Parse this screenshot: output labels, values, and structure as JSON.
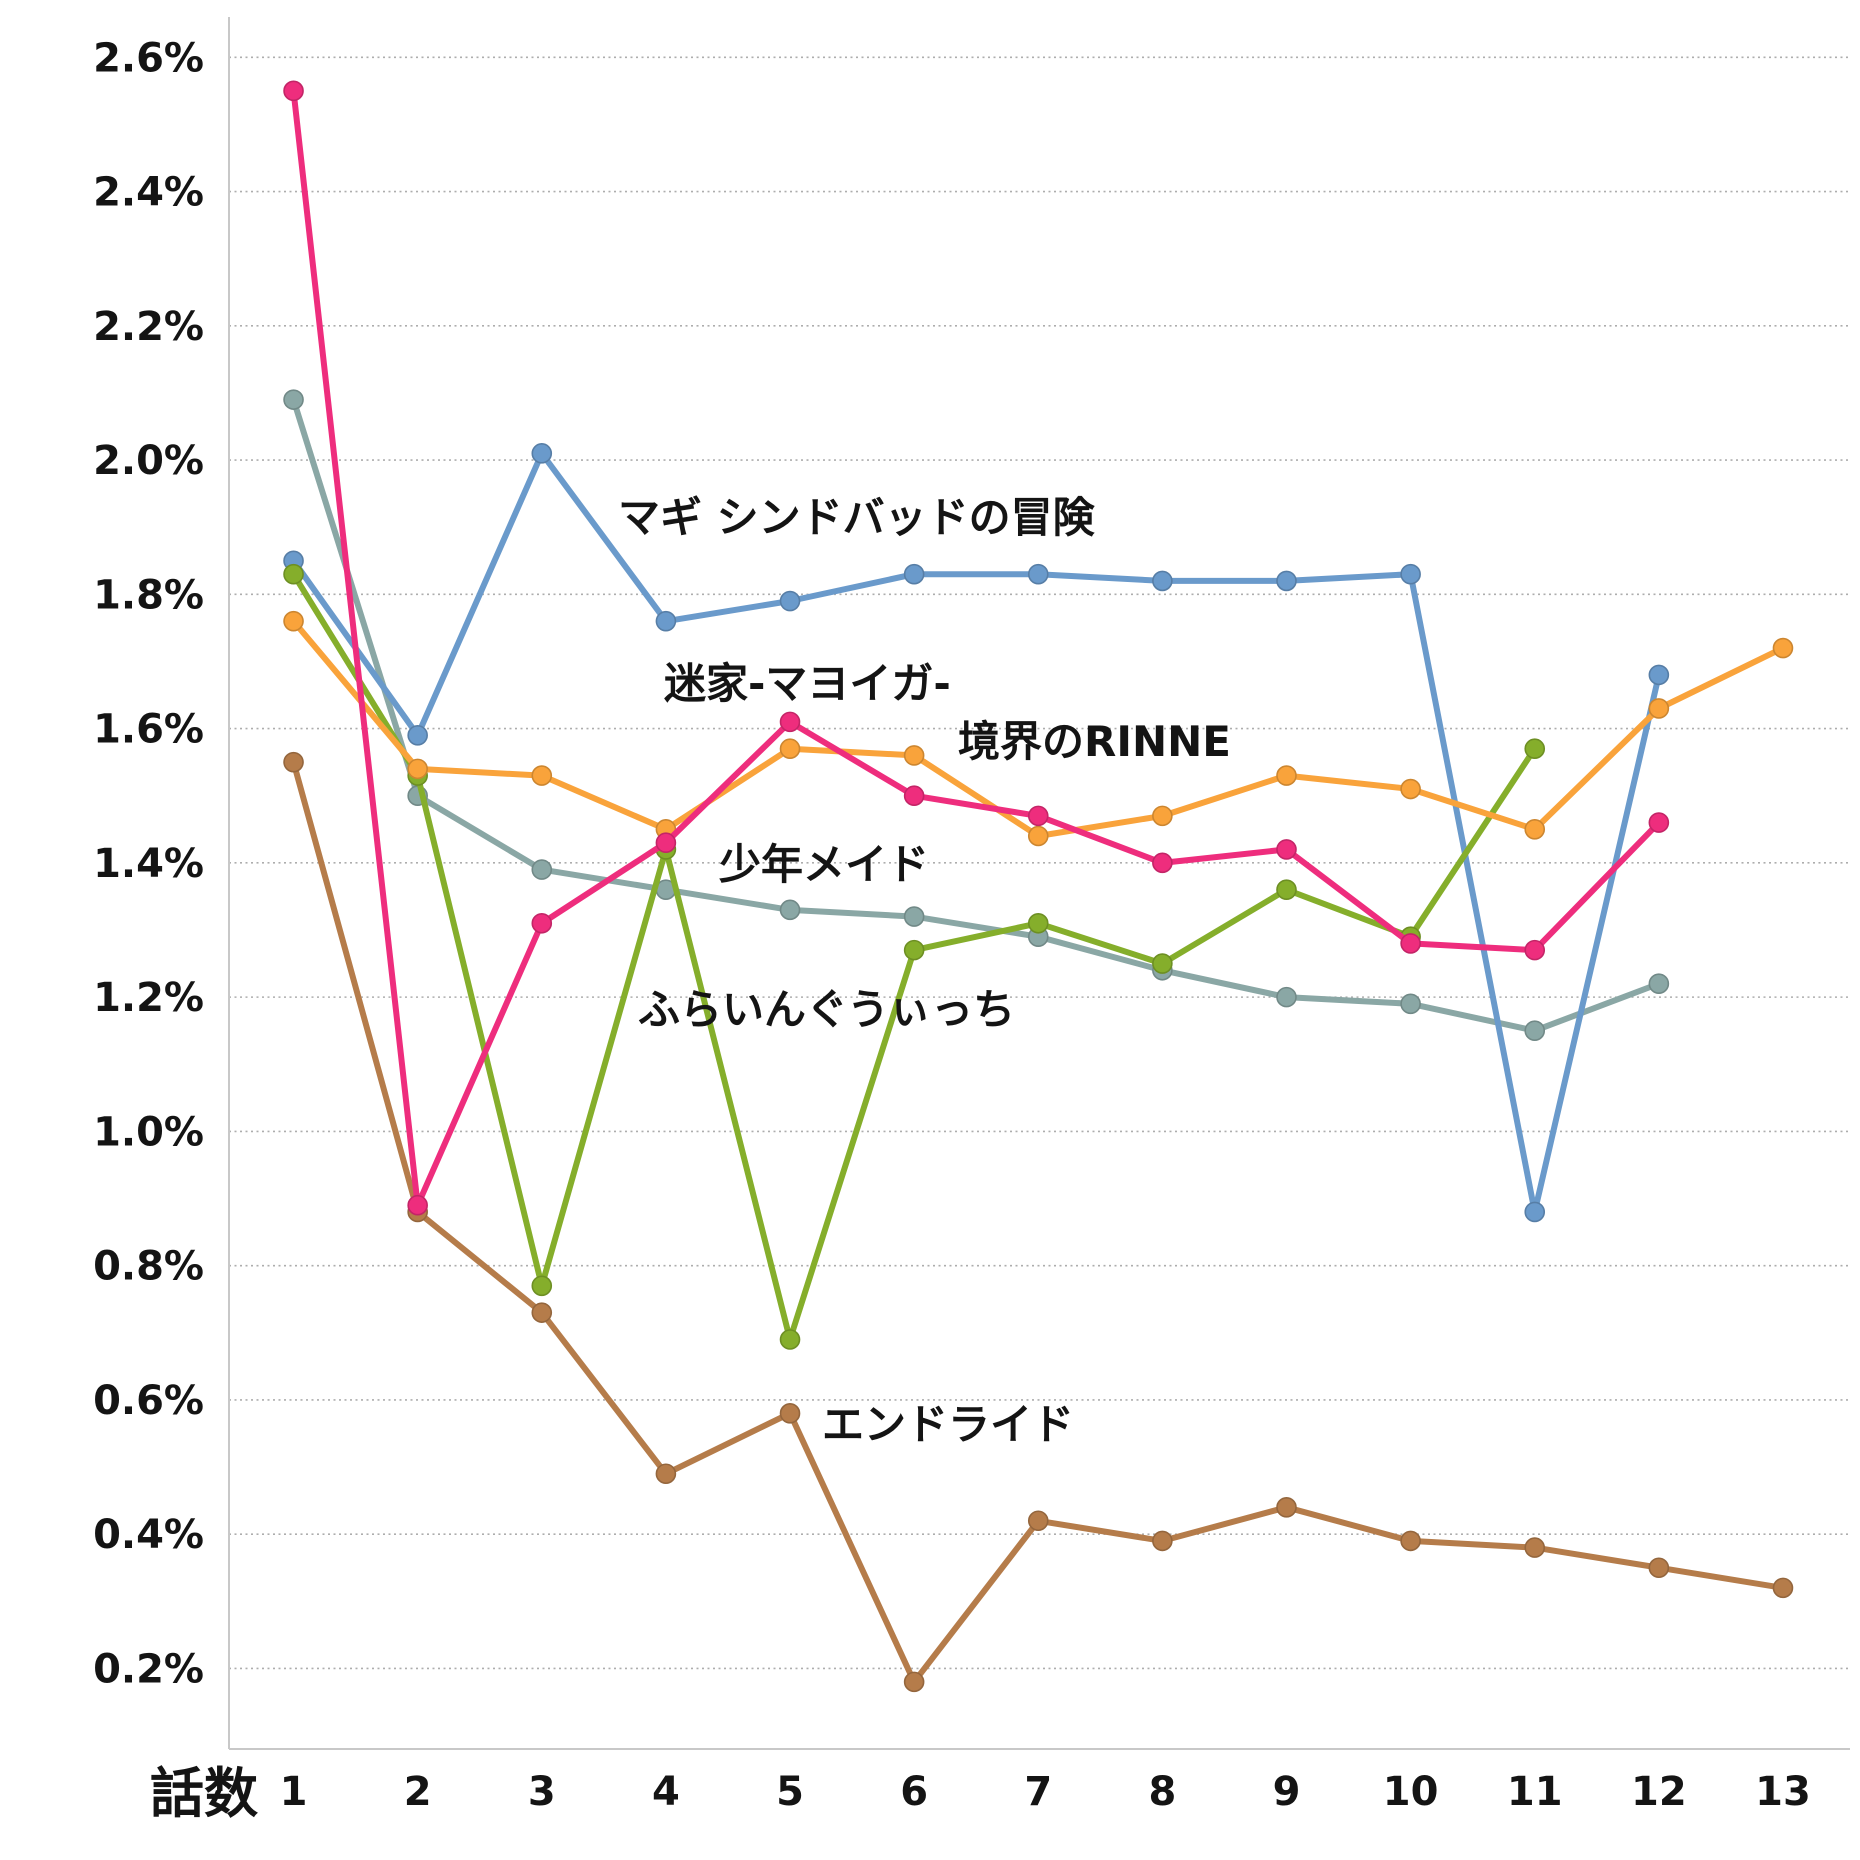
{
  "chart_data": {
    "type": "line",
    "title": "",
    "xlabel": "話数",
    "x": [
      1,
      2,
      3,
      4,
      5,
      6,
      7,
      8,
      9,
      10,
      11,
      12,
      13
    ],
    "x_tick_labels": [
      "1",
      "2",
      "3",
      "4",
      "5",
      "6",
      "7",
      "8",
      "9",
      "10",
      "11",
      "12",
      "13"
    ],
    "y_ticks": [
      0.2,
      0.4,
      0.6,
      0.8,
      1.0,
      1.2,
      1.4,
      1.6,
      1.8,
      2.0,
      2.2,
      2.4,
      2.6
    ],
    "y_tick_labels": [
      "0.2%",
      "0.4%",
      "0.6%",
      "0.8%",
      "1.0%",
      "1.2%",
      "1.4%",
      "1.6%",
      "1.8%",
      "2.0%",
      "2.2%",
      "2.4%",
      "2.6%"
    ],
    "xlim": [
      0.48,
      13.54
    ],
    "ylim": [
      0.08,
      2.66
    ],
    "grid": true,
    "series": [
      {
        "name": "マギ シンドバッドの冒険",
        "color": "#6A9ACB",
        "values": [
          1.85,
          1.59,
          2.01,
          1.76,
          1.79,
          1.83,
          1.83,
          1.82,
          1.82,
          1.83,
          0.88,
          1.68,
          null
        ]
      },
      {
        "name": "迷家-マヨイガ-",
        "color": "#F9A33B",
        "values": [
          1.76,
          1.54,
          1.53,
          1.45,
          1.57,
          1.56,
          1.44,
          1.47,
          1.53,
          1.51,
          1.45,
          1.63,
          1.72
        ]
      },
      {
        "name": "境界のRINNE",
        "color": "#EE2D7D",
        "values": [
          2.55,
          0.89,
          1.31,
          1.43,
          1.61,
          1.5,
          1.47,
          1.4,
          1.42,
          1.28,
          1.27,
          1.46,
          null
        ]
      },
      {
        "name": "少年メイド",
        "color": "#8AA7A5",
        "values": [
          2.09,
          1.5,
          1.39,
          1.36,
          1.33,
          1.32,
          1.29,
          1.24,
          1.2,
          1.19,
          1.15,
          1.22,
          null
        ]
      },
      {
        "name": "ふらいんぐうぃっち",
        "color": "#85AE2B",
        "values": [
          1.83,
          1.53,
          0.77,
          1.42,
          0.69,
          1.27,
          1.31,
          1.25,
          1.36,
          1.29,
          1.57,
          null,
          null
        ]
      },
      {
        "name": "エンドライド",
        "color": "#B57C4A",
        "values": [
          1.55,
          0.88,
          0.73,
          0.49,
          0.58,
          0.18,
          0.42,
          0.39,
          0.44,
          0.39,
          0.38,
          0.35,
          0.32
        ]
      }
    ]
  }
}
